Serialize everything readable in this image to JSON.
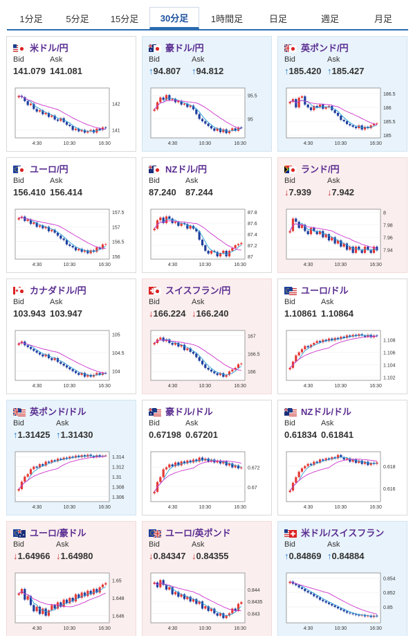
{
  "tabs": [
    {
      "label": "1分足",
      "active": false
    },
    {
      "label": "5分足",
      "active": false
    },
    {
      "label": "15分足",
      "active": false
    },
    {
      "label": "30分足",
      "active": true
    },
    {
      "label": "1時間足",
      "active": false
    },
    {
      "label": "日足",
      "active": false
    },
    {
      "label": "週足",
      "active": false
    },
    {
      "label": "月足",
      "active": false
    }
  ],
  "labels": {
    "bid": "Bid",
    "ask": "Ask"
  },
  "colors": {
    "up_bg": "#e8f3fb",
    "down_bg": "#fbeeee",
    "up_arrow": "#2277cc",
    "down_arrow": "#cc3333",
    "candle_up": "#e53935",
    "candle_down": "#1f3f9e",
    "ma_short": "#2aa0d8",
    "ma_long": "#cc33cc"
  },
  "pairs": [
    {
      "name": "米ドル/円",
      "flags": [
        "us",
        "jp"
      ],
      "bid": "141.079",
      "ask": "141.081",
      "change": "none",
      "chart_data": {
        "type": "candlestick",
        "x_ticks": [
          "4:30",
          "10:30",
          "16:30"
        ],
        "y_ticks": [
          "142",
          "141"
        ],
        "ylim": [
          140.7,
          142.6
        ],
        "closes": [
          142.3,
          142.25,
          142.1,
          141.95,
          142.0,
          141.8,
          141.7,
          141.75,
          141.6,
          141.65,
          141.5,
          141.55,
          141.4,
          141.35,
          141.45,
          141.3,
          141.2,
          141.15,
          141.0,
          141.05,
          140.95,
          141.0,
          140.9,
          140.95,
          141.0,
          140.9,
          141.05,
          141.0,
          141.1,
          141.08
        ]
      }
    },
    {
      "name": "豪ドル/円",
      "flags": [
        "au",
        "jp"
      ],
      "bid": "94.807",
      "ask": "94.812",
      "change": "up",
      "chart_data": {
        "type": "candlestick",
        "x_ticks": [
          "4:30",
          "10:30",
          "16:30"
        ],
        "y_ticks": [
          "95.5",
          "95"
        ],
        "ylim": [
          94.6,
          95.65
        ],
        "closes": [
          95.2,
          95.35,
          95.45,
          95.4,
          95.5,
          95.4,
          95.42,
          95.35,
          95.38,
          95.3,
          95.32,
          95.25,
          95.28,
          95.2,
          95.1,
          95.0,
          94.95,
          94.9,
          94.85,
          94.8,
          94.75,
          94.8,
          94.72,
          94.78,
          94.7,
          94.75,
          94.8,
          94.75,
          94.82,
          94.81
        ]
      }
    },
    {
      "name": "英ポンド/円",
      "flags": [
        "gb",
        "jp"
      ],
      "bid": "185.420",
      "ask": "185.427",
      "change": "up",
      "chart_data": {
        "type": "candlestick",
        "x_ticks": [
          "4:30",
          "10:30",
          "16:30"
        ],
        "y_ticks": [
          "186.5",
          "186",
          "185.5",
          "185"
        ],
        "ylim": [
          184.9,
          186.7
        ],
        "closes": [
          186.2,
          186.3,
          186.0,
          186.35,
          186.4,
          186.1,
          186.0,
          185.9,
          186.05,
          186.0,
          186.1,
          185.95,
          186.0,
          186.05,
          185.9,
          185.8,
          185.7,
          185.55,
          185.5,
          185.4,
          185.35,
          185.3,
          185.25,
          185.35,
          185.2,
          185.3,
          185.25,
          185.35,
          185.4,
          185.42
        ]
      }
    },
    {
      "name": "ユーロ/円",
      "flags": [
        "eu",
        "jp"
      ],
      "bid": "156.410",
      "ask": "156.414",
      "change": "none",
      "chart_data": {
        "type": "candlestick",
        "x_ticks": [
          "4:30",
          "10:30",
          "16:30"
        ],
        "y_ticks": [
          "157.5",
          "157",
          "156.5",
          "156"
        ],
        "ylim": [
          155.9,
          157.6
        ],
        "closes": [
          157.3,
          157.35,
          157.2,
          157.25,
          157.1,
          157.15,
          157.0,
          157.05,
          156.95,
          157.0,
          156.85,
          156.9,
          156.8,
          156.7,
          156.6,
          156.55,
          156.4,
          156.35,
          156.3,
          156.2,
          156.25,
          156.15,
          156.2,
          156.1,
          156.2,
          156.15,
          156.3,
          156.25,
          156.4,
          156.41
        ]
      }
    },
    {
      "name": "NZドル/円",
      "flags": [
        "nz",
        "jp"
      ],
      "bid": "87.240",
      "ask": "87.244",
      "change": "none",
      "chart_data": {
        "type": "candlestick",
        "x_ticks": [
          "4:30",
          "10:30",
          "16:30"
        ],
        "y_ticks": [
          "87.8",
          "87.6",
          "87.4",
          "87.2",
          "87"
        ],
        "ylim": [
          86.95,
          87.85
        ],
        "closes": [
          87.5,
          87.65,
          87.7,
          87.6,
          87.72,
          87.68,
          87.6,
          87.62,
          87.55,
          87.6,
          87.58,
          87.5,
          87.55,
          87.5,
          87.45,
          87.3,
          87.2,
          87.1,
          87.05,
          87.1,
          87.08,
          87.0,
          87.05,
          87.1,
          87.0,
          87.1,
          87.15,
          87.2,
          87.22,
          87.24
        ]
      }
    },
    {
      "name": "ランド/円",
      "flags": [
        "za",
        "jp"
      ],
      "bid": "7.939",
      "ask": "7.942",
      "change": "down",
      "chart_data": {
        "type": "candlestick",
        "x_ticks": [
          "4:30",
          "10:30",
          "16:30"
        ],
        "y_ticks": [
          "8",
          "7.98",
          "7.96",
          "7.94"
        ],
        "ylim": [
          7.925,
          8.005
        ],
        "closes": [
          7.97,
          7.99,
          7.985,
          7.975,
          7.98,
          7.97,
          7.965,
          7.975,
          7.97,
          7.965,
          7.97,
          7.96,
          7.965,
          7.955,
          7.96,
          7.95,
          7.955,
          7.945,
          7.95,
          7.94,
          7.945,
          7.935,
          7.945,
          7.94,
          7.935,
          7.945,
          7.94,
          7.935,
          7.945,
          7.939
        ]
      }
    },
    {
      "name": "カナダドル/円",
      "flags": [
        "ca",
        "jp"
      ],
      "bid": "103.943",
      "ask": "103.947",
      "change": "none",
      "chart_data": {
        "type": "candlestick",
        "x_ticks": [
          "4:30",
          "10:30",
          "16:30"
        ],
        "y_ticks": [
          "105",
          "104.5",
          "104"
        ],
        "ylim": [
          103.75,
          105.1
        ],
        "closes": [
          104.75,
          104.8,
          104.7,
          104.65,
          104.6,
          104.55,
          104.5,
          104.45,
          104.4,
          104.45,
          104.35,
          104.3,
          104.35,
          104.25,
          104.2,
          104.15,
          104.1,
          104.05,
          104.0,
          103.95,
          103.9,
          103.95,
          103.85,
          103.9,
          103.85,
          103.9,
          103.95,
          103.9,
          103.95,
          103.94
        ]
      }
    },
    {
      "name": "スイスフラン/円",
      "flags": [
        "ch",
        "jp"
      ],
      "bid": "166.224",
      "ask": "166.240",
      "change": "down",
      "chart_data": {
        "type": "candlestick",
        "x_ticks": [
          "4:30",
          "10:30",
          "16:30"
        ],
        "y_ticks": [
          "167",
          "166.5",
          "166"
        ],
        "ylim": [
          165.75,
          167.15
        ],
        "closes": [
          166.8,
          166.9,
          166.95,
          166.85,
          166.9,
          166.8,
          166.75,
          166.8,
          166.7,
          166.75,
          166.6,
          166.65,
          166.55,
          166.5,
          166.4,
          166.3,
          166.2,
          166.1,
          166.05,
          166.0,
          165.95,
          165.9,
          165.95,
          165.85,
          165.9,
          166.0,
          166.05,
          166.1,
          166.2,
          166.22
        ]
      }
    },
    {
      "name": "ユーロ/ドル",
      "flags": [
        "eu",
        "us"
      ],
      "bid": "1.10861",
      "ask": "1.10864",
      "change": "none",
      "chart_data": {
        "type": "candlestick",
        "x_ticks": [
          "4:30",
          "10:30",
          "16:30"
        ],
        "y_ticks": [
          "1.108",
          "1.106",
          "1.104",
          "1.102"
        ],
        "ylim": [
          1.1015,
          1.1095
        ],
        "closes": [
          1.1035,
          1.1045,
          1.1055,
          1.106,
          1.1065,
          1.107,
          1.1068,
          1.1072,
          1.1075,
          1.1078,
          1.1076,
          1.108,
          1.1078,
          1.1082,
          1.1079,
          1.1083,
          1.1081,
          1.1085,
          1.1083,
          1.1087,
          1.1085,
          1.1088,
          1.1086,
          1.1089,
          1.1087,
          1.1085,
          1.1088,
          1.1084,
          1.1087,
          1.1086
        ]
      }
    },
    {
      "name": "英ポンド/ドル",
      "flags": [
        "gb",
        "us"
      ],
      "bid": "1.31425",
      "ask": "1.31430",
      "change": "up",
      "chart_data": {
        "type": "candlestick",
        "x_ticks": [
          "4:30",
          "10:30",
          "16:30"
        ],
        "y_ticks": [
          "1.314",
          "1.312",
          "1.31",
          "1.308",
          "1.306"
        ],
        "ylim": [
          1.305,
          1.315
        ],
        "closes": [
          1.3075,
          1.309,
          1.31,
          1.3105,
          1.3115,
          1.312,
          1.3118,
          1.3125,
          1.3122,
          1.313,
          1.3128,
          1.3133,
          1.3131,
          1.3136,
          1.3134,
          1.3138,
          1.3136,
          1.314,
          1.3138,
          1.3142,
          1.3139,
          1.3143,
          1.314,
          1.3144,
          1.3141,
          1.3139,
          1.3143,
          1.314,
          1.3142,
          1.31425
        ]
      }
    },
    {
      "name": "豪ドル/ドル",
      "flags": [
        "au",
        "us"
      ],
      "bid": "0.67198",
      "ask": "0.67201",
      "change": "none",
      "chart_data": {
        "type": "candlestick",
        "x_ticks": [
          "4:30",
          "10:30",
          "16:30"
        ],
        "y_ticks": [
          "0.672",
          "0.67"
        ],
        "ylim": [
          0.6685,
          0.6736
        ],
        "closes": [
          0.6695,
          0.6705,
          0.671,
          0.6718,
          0.672,
          0.6723,
          0.6721,
          0.6725,
          0.6722,
          0.6726,
          0.6724,
          0.6727,
          0.6725,
          0.6728,
          0.6726,
          0.673,
          0.6727,
          0.6729,
          0.6726,
          0.6728,
          0.6725,
          0.6727,
          0.6724,
          0.6726,
          0.6722,
          0.6724,
          0.672,
          0.6722,
          0.6719,
          0.67198
        ]
      }
    },
    {
      "name": "NZドル/ドル",
      "flags": [
        "nz",
        "us"
      ],
      "bid": "0.61834",
      "ask": "0.61841",
      "change": "none",
      "chart_data": {
        "type": "candlestick",
        "x_ticks": [
          "4:30",
          "10:30",
          "16:30"
        ],
        "y_ticks": [
          "0.618",
          "0.616"
        ],
        "ylim": [
          0.6148,
          0.6193
        ],
        "closes": [
          0.6158,
          0.6165,
          0.617,
          0.6175,
          0.6178,
          0.618,
          0.6182,
          0.6181,
          0.6184,
          0.6183,
          0.6186,
          0.6185,
          0.6187,
          0.6186,
          0.6188,
          0.6187,
          0.619,
          0.6188,
          0.6186,
          0.6187,
          0.6184,
          0.6186,
          0.6183,
          0.6185,
          0.6182,
          0.6184,
          0.6181,
          0.6183,
          0.6182,
          0.61834
        ]
      }
    },
    {
      "name": "ユーロ/豪ドル",
      "flags": [
        "eu",
        "au"
      ],
      "bid": "1.64966",
      "ask": "1.64980",
      "change": "down",
      "chart_data": {
        "type": "candlestick",
        "x_ticks": [
          "4:30",
          "10:30",
          "16:30"
        ],
        "y_ticks": [
          "1.65",
          "1.648",
          "1.646"
        ],
        "ylim": [
          1.6452,
          1.6508
        ],
        "closes": [
          1.6485,
          1.649,
          1.6478,
          1.6482,
          1.6472,
          1.6465,
          1.647,
          1.6462,
          1.6468,
          1.646,
          1.6466,
          1.6472,
          1.6468,
          1.6475,
          1.647,
          1.6478,
          1.6474,
          1.648,
          1.6476,
          1.6484,
          1.648,
          1.6486,
          1.6482,
          1.6488,
          1.6484,
          1.649,
          1.6486,
          1.6492,
          1.6495,
          1.64966
        ]
      }
    },
    {
      "name": "ユーロ/英ポンド",
      "flags": [
        "eu",
        "gb"
      ],
      "bid": "0.84347",
      "ask": "0.84355",
      "change": "down",
      "chart_data": {
        "type": "candlestick",
        "x_ticks": [
          "4:30",
          "10:30",
          "16:30"
        ],
        "y_ticks": [
          "0.844",
          "0.8435",
          "0.843"
        ],
        "ylim": [
          0.8426,
          0.8447
        ],
        "closes": [
          0.8443,
          0.8441,
          0.8444,
          0.8442,
          0.844,
          0.8441,
          0.8438,
          0.8439,
          0.8437,
          0.8438,
          0.8436,
          0.8437,
          0.8435,
          0.8436,
          0.8434,
          0.8435,
          0.8432,
          0.8433,
          0.8431,
          0.8432,
          0.843,
          0.8429,
          0.843,
          0.8428,
          0.8429,
          0.843,
          0.8432,
          0.8431,
          0.8434,
          0.84347
        ]
      }
    },
    {
      "name": "米ドル/スイスフラン",
      "flags": [
        "us",
        "ch"
      ],
      "bid": "0.84869",
      "ask": "0.84884",
      "change": "up",
      "chart_data": {
        "type": "candlestick",
        "x_ticks": [
          "4:30",
          "10:30",
          "16:30"
        ],
        "y_ticks": [
          "0.854",
          "0.852",
          "0.85"
        ],
        "ylim": [
          0.8478,
          0.8547
        ],
        "closes": [
          0.8535,
          0.8532,
          0.853,
          0.8527,
          0.8525,
          0.8522,
          0.852,
          0.8518,
          0.8515,
          0.8513,
          0.851,
          0.8508,
          0.8506,
          0.8504,
          0.8502,
          0.85,
          0.8498,
          0.8496,
          0.8494,
          0.8492,
          0.8491,
          0.849,
          0.8489,
          0.8488,
          0.8489,
          0.8487,
          0.8488,
          0.8486,
          0.8488,
          0.84869
        ]
      }
    }
  ]
}
